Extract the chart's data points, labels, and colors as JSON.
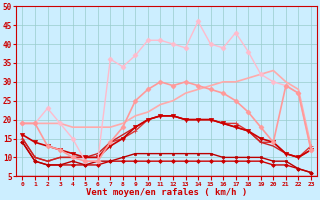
{
  "xlabel": "Vent moyen/en rafales ( km/h )",
  "xlim": [
    -0.5,
    23.5
  ],
  "ylim": [
    5,
    50
  ],
  "yticks": [
    5,
    10,
    15,
    20,
    25,
    30,
    35,
    40,
    45,
    50
  ],
  "xticks": [
    0,
    1,
    2,
    3,
    4,
    5,
    6,
    7,
    8,
    9,
    10,
    11,
    12,
    13,
    14,
    15,
    16,
    17,
    18,
    19,
    20,
    21,
    22,
    23
  ],
  "background_color": "#cceeff",
  "grid_color": "#99cccc",
  "lines": [
    {
      "y": [
        14,
        9,
        8,
        8,
        8,
        8,
        8,
        9,
        9,
        9,
        9,
        9,
        9,
        9,
        9,
        9,
        9,
        9,
        9,
        9,
        8,
        8,
        7,
        6
      ],
      "color": "#cc0000",
      "lw": 1.0,
      "marker": "D",
      "ms": 2.0
    },
    {
      "y": [
        14,
        9,
        8,
        8,
        9,
        8,
        9,
        9,
        10,
        11,
        11,
        11,
        11,
        11,
        11,
        11,
        10,
        10,
        10,
        10,
        9,
        9,
        7,
        6
      ],
      "color": "#bb0000",
      "lw": 1.0,
      "marker": "s",
      "ms": 2.0
    },
    {
      "y": [
        15,
        10,
        9,
        10,
        10,
        10,
        10,
        14,
        15,
        17,
        20,
        21,
        21,
        20,
        20,
        20,
        19,
        19,
        17,
        14,
        14,
        11,
        10,
        13
      ],
      "color": "#dd3333",
      "lw": 1.0,
      "marker": "+",
      "ms": 3.5
    },
    {
      "y": [
        15,
        10,
        9,
        10,
        10,
        10,
        11,
        14,
        16,
        18,
        20,
        21,
        21,
        20,
        20,
        20,
        19,
        18,
        17,
        14,
        13,
        11,
        10,
        12
      ],
      "color": "#cc2222",
      "lw": 1.0,
      "marker": null,
      "ms": 0
    },
    {
      "y": [
        16,
        14,
        13,
        12,
        11,
        10,
        10,
        13,
        15,
        18,
        20,
        21,
        21,
        20,
        20,
        20,
        19,
        18,
        17,
        15,
        14,
        11,
        10,
        12
      ],
      "color": "#cc0000",
      "lw": 1.2,
      "marker": "v",
      "ms": 3.0
    },
    {
      "y": [
        19,
        19,
        19,
        19,
        18,
        18,
        18,
        18,
        19,
        21,
        22,
        24,
        25,
        27,
        28,
        29,
        30,
        30,
        31,
        32,
        33,
        30,
        28,
        13
      ],
      "color": "#ffaaaa",
      "lw": 1.2,
      "marker": null,
      "ms": 0
    },
    {
      "y": [
        19,
        19,
        23,
        19,
        15,
        9,
        9,
        36,
        34,
        37,
        41,
        41,
        40,
        39,
        46,
        40,
        39,
        43,
        38,
        32,
        30,
        29,
        27,
        12
      ],
      "color": "#ffbbcc",
      "lw": 1.0,
      "marker": "D",
      "ms": 2.5
    },
    {
      "y": [
        19,
        19,
        13,
        12,
        10,
        9,
        9,
        14,
        18,
        25,
        28,
        30,
        29,
        30,
        29,
        28,
        27,
        25,
        22,
        18,
        14,
        29,
        27,
        12
      ],
      "color": "#ff9999",
      "lw": 1.2,
      "marker": "D",
      "ms": 2.5
    }
  ],
  "arrow_color": "#cc0000",
  "xlabel_color": "#cc0000",
  "xlabel_fontsize": 6.5,
  "ytick_fontsize": 5.5,
  "xtick_fontsize": 4.5,
  "ytick_color": "#cc0000",
  "xtick_color": "#cc0000"
}
